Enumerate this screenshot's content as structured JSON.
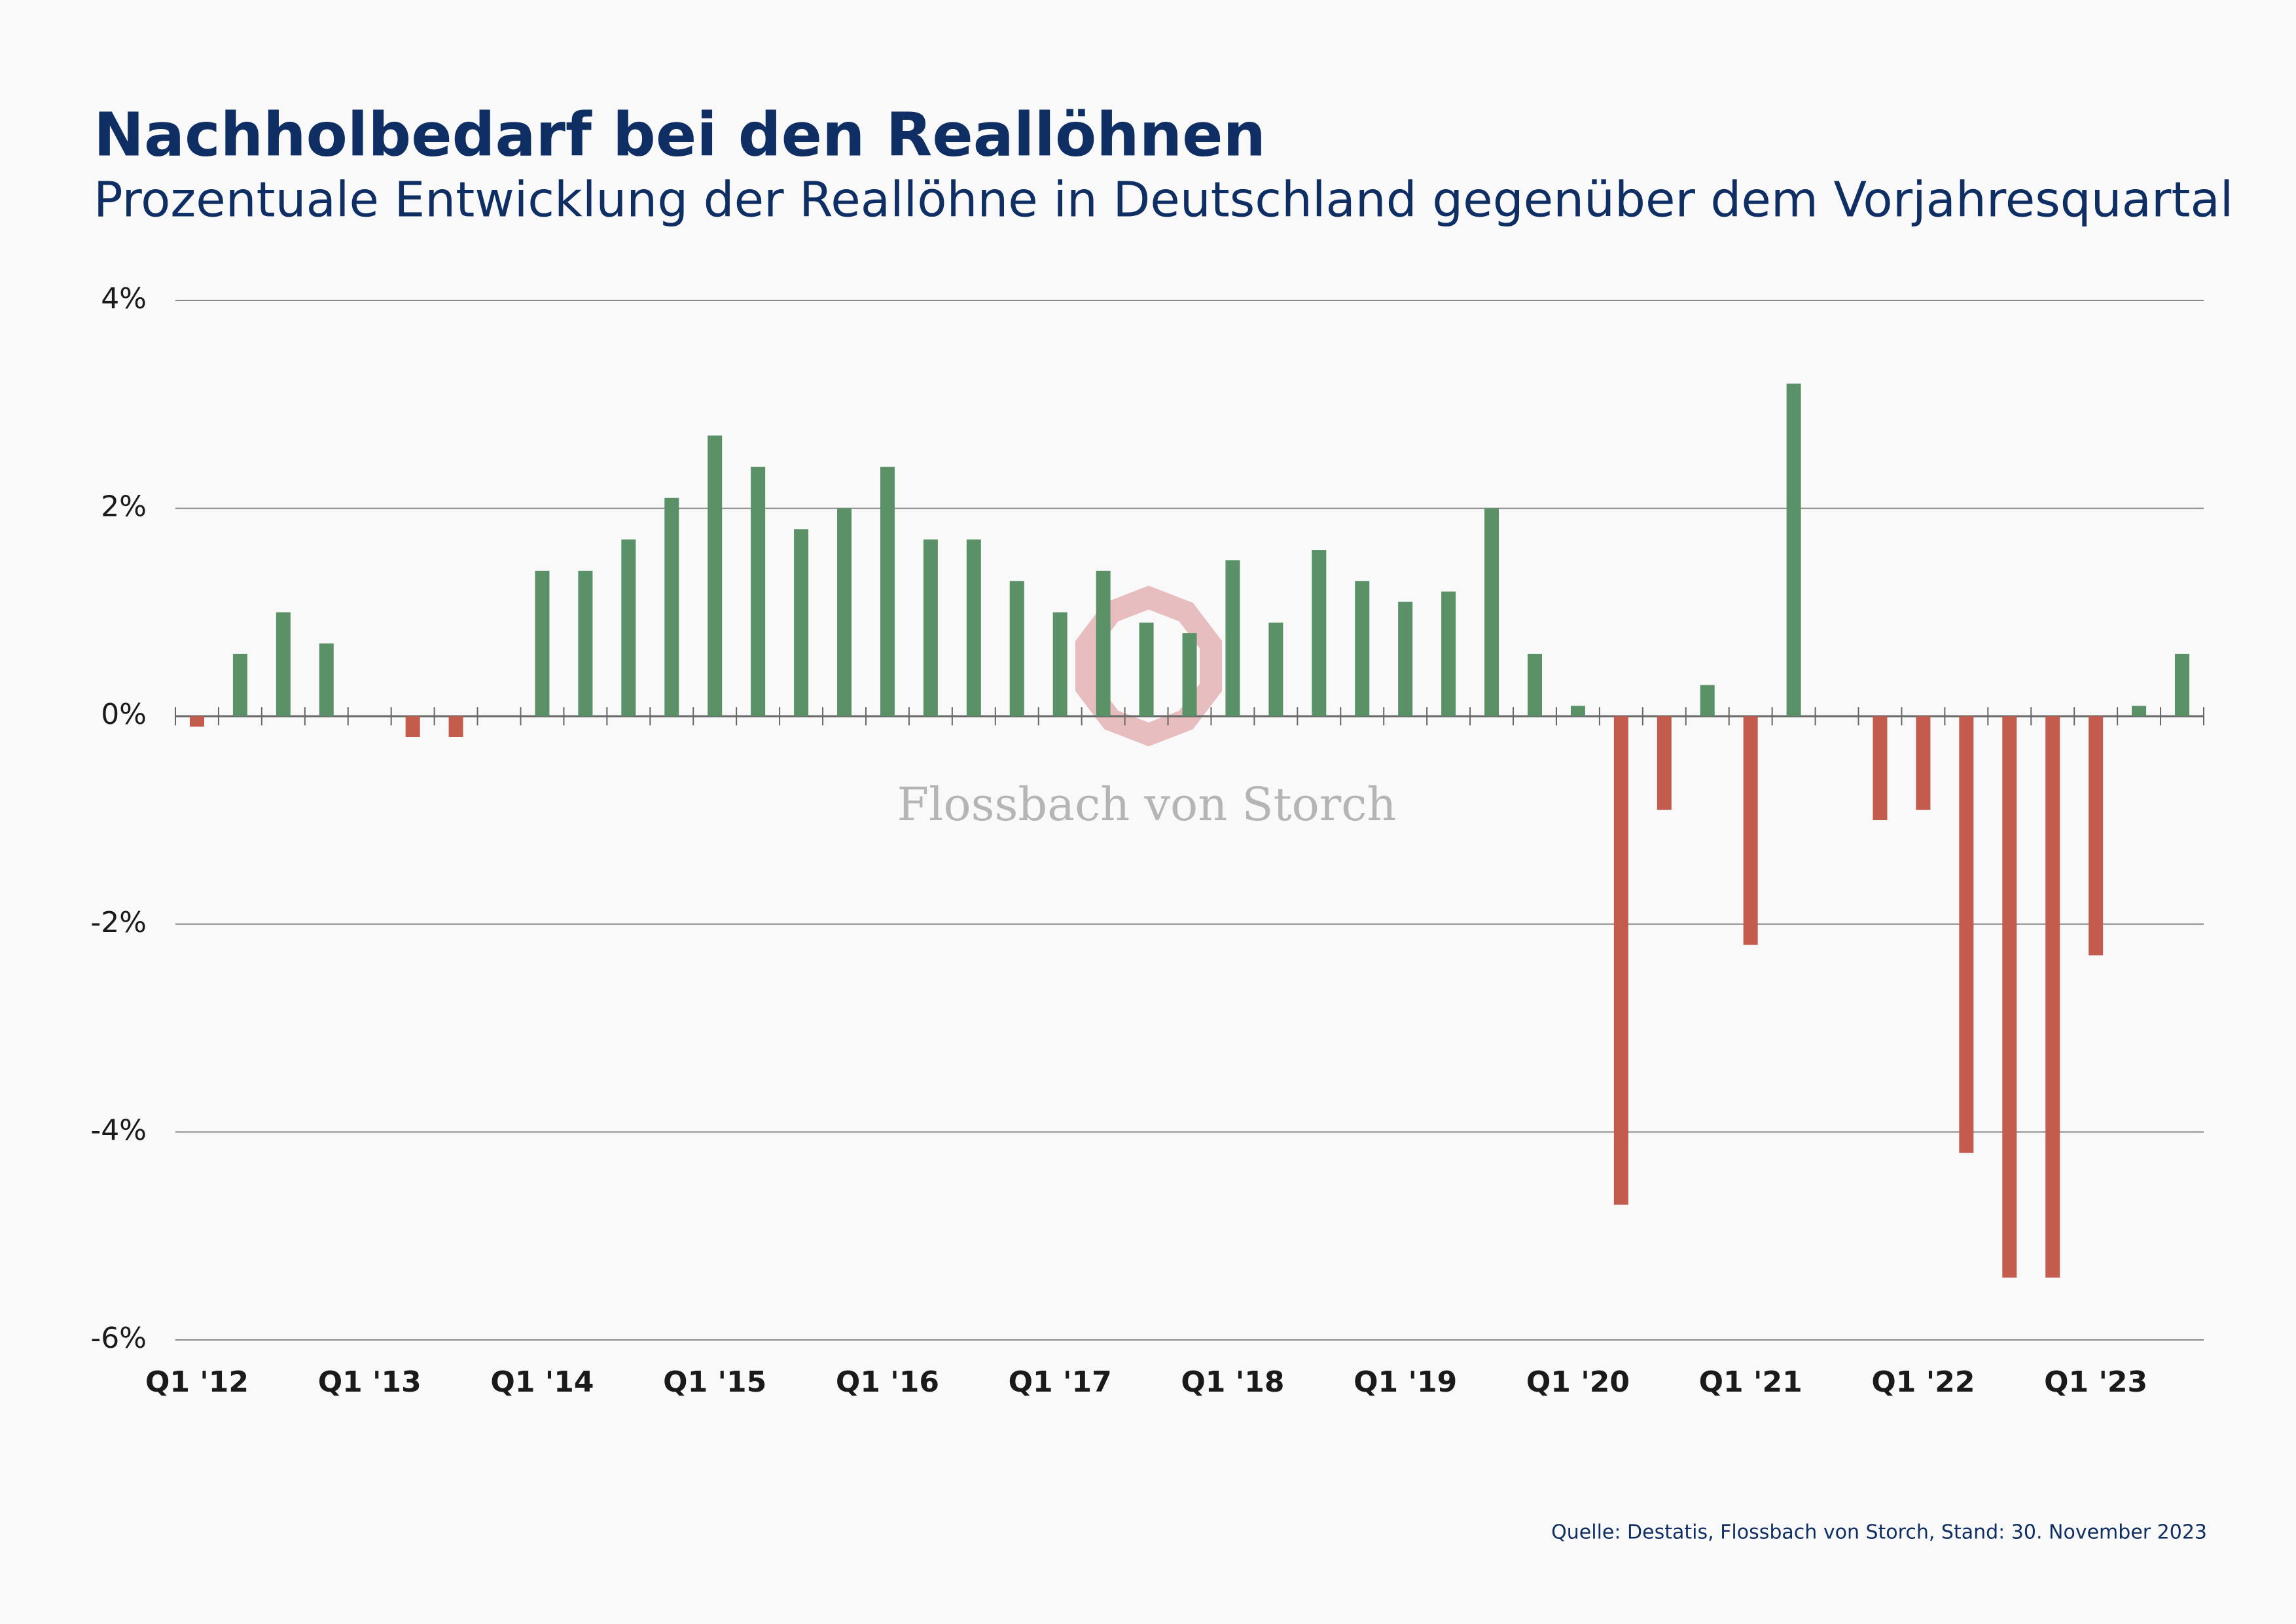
{
  "chart_data": {
    "type": "bar",
    "title": "Nachholbedarf bei den Reallöhnen",
    "subtitle": "Prozentuale Entwicklung der Reallöhne in Deutschland gegenüber dem Vorjahresquartal",
    "watermark": "Flossbach von Storch",
    "source": "Quelle: Destatis, Flossbach von Storch, Stand: 30. November 2023",
    "categories": [
      "Q1 '12",
      null,
      null,
      null,
      "Q1 '13",
      null,
      null,
      null,
      "Q1 '14",
      null,
      null,
      null,
      "Q1 '15",
      null,
      null,
      null,
      "Q1 '16",
      null,
      null,
      null,
      "Q1 '17",
      null,
      null,
      null,
      "Q1 '18",
      null,
      null,
      null,
      "Q1 '19",
      null,
      null,
      null,
      "Q1 '20",
      null,
      null,
      null,
      "Q1 '21",
      null,
      null,
      null,
      "Q1 '22",
      null,
      null,
      null,
      "Q1 '23",
      null,
      null
    ],
    "values": [
      -0.1,
      0.6,
      1.0,
      0.7,
      0,
      -0.2,
      -0.2,
      0,
      1.4,
      1.4,
      1.7,
      2.1,
      2.7,
      2.4,
      1.8,
      2.0,
      2.4,
      1.7,
      1.7,
      1.3,
      1.0,
      1.4,
      0.9,
      0.8,
      1.5,
      0.9,
      1.6,
      1.3,
      1.1,
      1.2,
      2.0,
      0.6,
      0.1,
      -4.7,
      -0.9,
      0.3,
      -2.2,
      3.2,
      0,
      -1.0,
      -0.9,
      -4.2,
      -5.4,
      -5.4,
      -2.3,
      0.1,
      0.6
    ],
    "colors": {
      "positive": "#5a9166",
      "negative": "#c45c4d"
    },
    "ylim": [
      -6,
      4
    ],
    "yticks": [
      {
        "value": 4,
        "label": "4%"
      },
      {
        "value": 2,
        "label": "2%"
      },
      {
        "value": 0,
        "label": "0%"
      },
      {
        "value": -2,
        "label": "-2%"
      },
      {
        "value": -4,
        "label": "-4%"
      },
      {
        "value": -6,
        "label": "-6%"
      }
    ],
    "grid": true
  }
}
